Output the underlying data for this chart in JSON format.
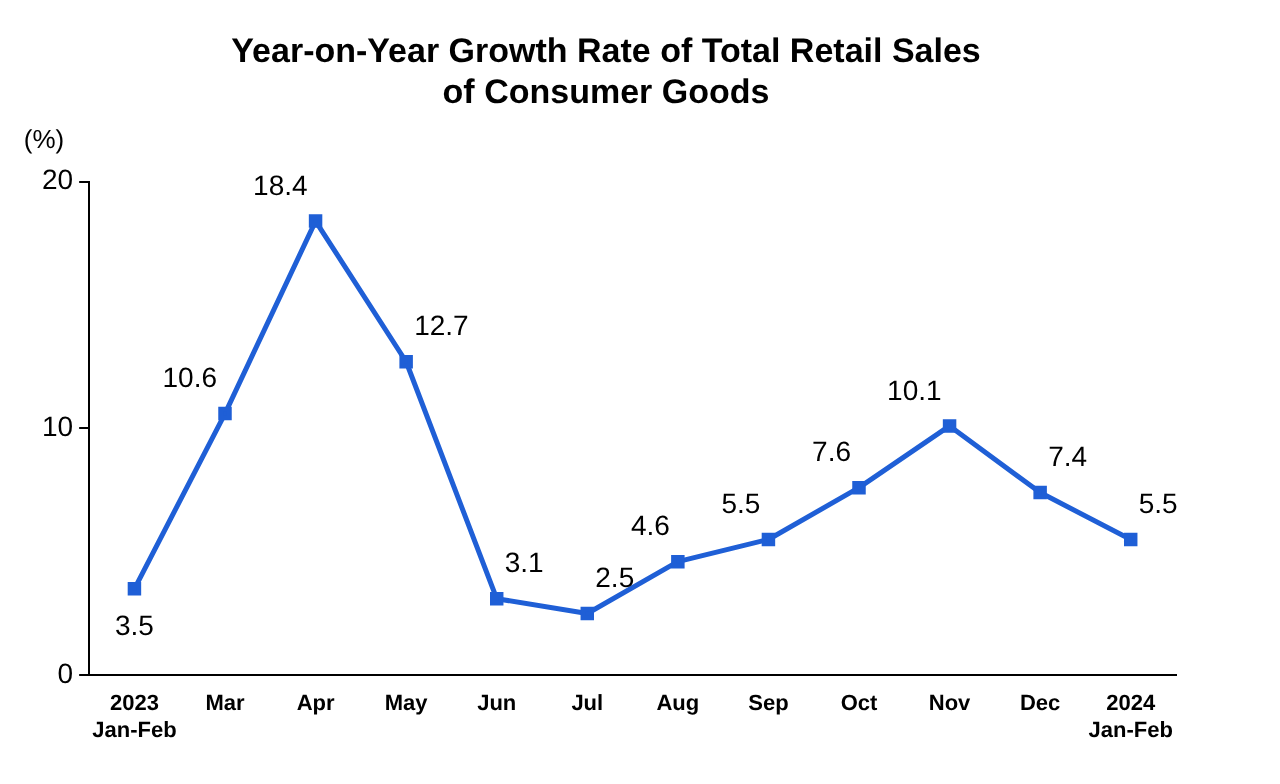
{
  "chart_data": {
    "type": "line",
    "title": [
      "Year-on-Year Growth Rate of Total Retail Sales",
      "of Consumer Goods"
    ],
    "ylabel": "(%)",
    "categories": [
      "2023\nJan-Feb",
      "Mar",
      "Apr",
      "May",
      "Jun",
      "Jul",
      "Aug",
      "Sep",
      "Oct",
      "Nov",
      "Dec",
      "2024\nJan-Feb"
    ],
    "series": [
      {
        "color": "#1f5fd6",
        "values": [
          3.5,
          10.6,
          18.4,
          12.7,
          3.1,
          2.5,
          4.6,
          5.5,
          7.6,
          10.1,
          7.4,
          5.5
        ]
      }
    ],
    "ylim": [
      0,
      20
    ],
    "yticks": [
      0,
      10,
      20
    ],
    "grid": false,
    "legend": false,
    "marker": "square",
    "line_style": "solid",
    "data_labels": true
  }
}
